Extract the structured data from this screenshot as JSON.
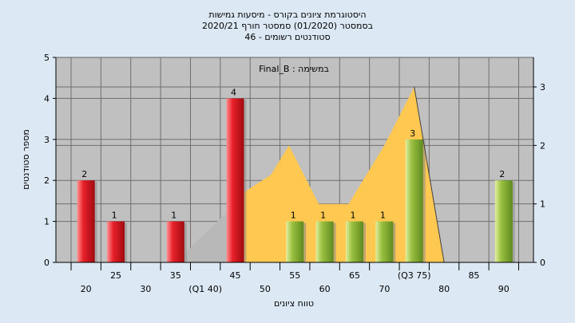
{
  "title_lines": [
    "היסטוגרמת ציונים בקורס - מיסעות גמישות",
    "בסמסטר  (01/2020)  סמסטר חורף  2020/21",
    "סטודנטים רשומים - 46"
  ],
  "chart_data": {
    "type": "bar",
    "annotation": "במשימה : Final_B",
    "xlabel": "טווח ציונים",
    "ylabel": "מספר סטודנטים",
    "ylim": [
      0,
      5
    ],
    "y2lim": [
      0,
      3
    ],
    "y_ticks": [
      "0",
      "1",
      "2",
      "3",
      "4",
      "5"
    ],
    "y2_ticks": [
      "0",
      "1",
      "2",
      "3"
    ],
    "x_ticks": [
      {
        "label": "20",
        "x": 20,
        "row": 2
      },
      {
        "label": "25",
        "x": 25,
        "row": 1
      },
      {
        "label": "30",
        "x": 30,
        "row": 2
      },
      {
        "label": "35",
        "x": 35,
        "row": 1
      },
      {
        "label": "(Q1 40)",
        "x": 40,
        "row": 2
      },
      {
        "label": "45",
        "x": 45,
        "row": 1
      },
      {
        "label": "50",
        "x": 50,
        "row": 2
      },
      {
        "label": "55",
        "x": 55,
        "row": 1
      },
      {
        "label": "60",
        "x": 60,
        "row": 2
      },
      {
        "label": "65",
        "x": 65,
        "row": 1
      },
      {
        "label": "70",
        "x": 70,
        "row": 2
      },
      {
        "label": "(Q3 75)",
        "x": 75,
        "row": 1
      },
      {
        "label": "80",
        "x": 80,
        "row": 2
      },
      {
        "label": "85",
        "x": 85,
        "row": 1
      },
      {
        "label": "90",
        "x": 90,
        "row": 2
      }
    ],
    "bars": [
      {
        "x": 20,
        "value": 2,
        "label": "2",
        "group": "low"
      },
      {
        "x": 25,
        "value": 1,
        "label": "1",
        "group": "low"
      },
      {
        "x": 35,
        "value": 1,
        "label": "1",
        "group": "low"
      },
      {
        "x": 45,
        "value": 4,
        "label": "4",
        "group": "low"
      },
      {
        "x": 55,
        "value": 1,
        "label": "1",
        "group": "high"
      },
      {
        "x": 60,
        "value": 1,
        "label": "1",
        "group": "high"
      },
      {
        "x": 65,
        "value": 1,
        "label": "1",
        "group": "high"
      },
      {
        "x": 70,
        "value": 1,
        "label": "1",
        "group": "high"
      },
      {
        "x": 75,
        "value": 3,
        "label": "3",
        "group": "high"
      },
      {
        "x": 90,
        "value": 2,
        "label": "2",
        "group": "high"
      }
    ],
    "area_gray": [
      [
        35,
        0
      ],
      [
        40,
        0.5
      ],
      [
        45,
        1
      ],
      [
        47,
        0
      ]
    ],
    "area_yellow": [
      [
        45,
        0
      ],
      [
        45,
        1.1
      ],
      [
        51,
        1.5
      ],
      [
        54,
        2
      ],
      [
        59,
        1
      ],
      [
        64,
        1
      ],
      [
        70,
        2
      ],
      [
        75,
        3
      ],
      [
        80,
        0
      ]
    ],
    "overlay_line": [
      [
        75,
        3
      ],
      [
        80,
        0
      ]
    ],
    "colors": {
      "bar_low_light": "#ff9090",
      "bar_low_mid": "#e8202a",
      "bar_low_dark": "#a00a10",
      "bar_high_light": "#e2f0a0",
      "bar_high_mid": "#9ac040",
      "bar_high_dark": "#5f8a20",
      "plot_bg": "#c0c0c0",
      "area_yellow": "#ffc850",
      "area_gray": "#b8b8b8",
      "page_bg": "#dce8f4"
    }
  }
}
